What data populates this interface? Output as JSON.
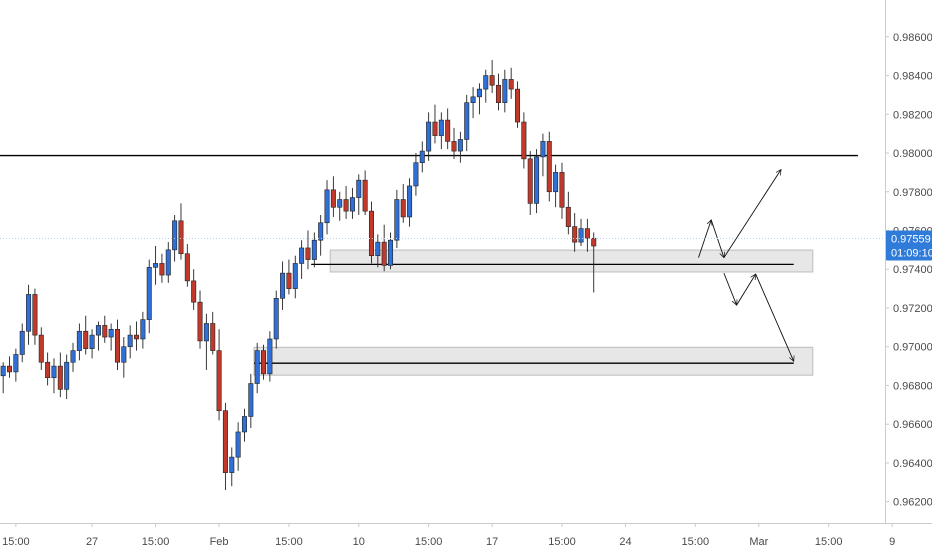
{
  "chart_data": {
    "type": "candlestick",
    "y_axis": {
      "position": "right",
      "ylim": [
        0.9609,
        0.9879
      ],
      "ticks": [
        "0.98600",
        "0.98400",
        "0.98200",
        "0.98000",
        "0.97800",
        "0.97600",
        "0.97400",
        "0.97200",
        "0.97000",
        "0.96800",
        "0.96600",
        "0.96400",
        "0.96200"
      ],
      "tick_values": [
        0.986,
        0.984,
        0.982,
        0.98,
        0.978,
        0.976,
        0.974,
        0.972,
        0.97,
        0.968,
        0.966,
        0.964,
        0.962
      ]
    },
    "x_axis": {
      "ticks": [
        "15:00",
        "27",
        "15:00",
        "Feb",
        "15:00",
        "10",
        "15:00",
        "17",
        "15:00",
        "24",
        "15:00",
        "Mar",
        "15:00",
        "9"
      ],
      "tick_index": [
        2,
        14,
        24,
        34,
        45,
        56,
        67,
        77,
        88,
        98,
        109,
        119,
        130,
        140
      ]
    },
    "colors": {
      "up": "#2f6fd6",
      "down": "#c0392b",
      "level_line": "#000000",
      "zone_fill": "#e3e3e3",
      "zone_border": "#bdbdbd",
      "price_line": "#b3d4f0",
      "price_badge": "#2f7bd9",
      "arrow": "#111111"
    },
    "current_price": {
      "value": 0.97559,
      "label": "0.97559",
      "countdown": "01:09:10"
    },
    "levels": [
      0.97987,
      0.97425,
      0.96915
    ],
    "zones": [
      {
        "from": 0.97386,
        "to": 0.97499,
        "start_index": 52,
        "end_index": 128
      },
      {
        "from": 0.96853,
        "to": 0.96997,
        "start_index": 40,
        "end_index": 128
      }
    ],
    "projection_path": [
      {
        "index": 110,
        "value": 0.9746
      },
      {
        "index": 112,
        "value": 0.97655
      },
      {
        "index": 114,
        "value": 0.9746
      },
      {
        "index": 123,
        "value": 0.97915
      }
    ],
    "projection_path_2": [
      {
        "index": 114,
        "value": 0.9738
      },
      {
        "index": 116,
        "value": 0.97215
      },
      {
        "index": 119,
        "value": 0.97375
      },
      {
        "index": 125,
        "value": 0.96925
      }
    ],
    "candles_ohlc": [
      [
        0.9685,
        0.9692,
        0.9676,
        0.969
      ],
      [
        0.969,
        0.9695,
        0.9684,
        0.9687
      ],
      [
        0.9687,
        0.9699,
        0.9682,
        0.9696
      ],
      [
        0.9696,
        0.9712,
        0.9692,
        0.9708
      ],
      [
        0.9708,
        0.9732,
        0.9701,
        0.9727
      ],
      [
        0.9727,
        0.973,
        0.9701,
        0.9706
      ],
      [
        0.9706,
        0.971,
        0.9688,
        0.9692
      ],
      [
        0.9692,
        0.9697,
        0.968,
        0.9684
      ],
      [
        0.9684,
        0.9694,
        0.9676,
        0.969
      ],
      [
        0.969,
        0.9697,
        0.9674,
        0.9678
      ],
      [
        0.9678,
        0.9696,
        0.9673,
        0.9692
      ],
      [
        0.9692,
        0.9702,
        0.9687,
        0.9698
      ],
      [
        0.9698,
        0.9712,
        0.9693,
        0.9708
      ],
      [
        0.9708,
        0.9716,
        0.9696,
        0.9699
      ],
      [
        0.9699,
        0.9709,
        0.9694,
        0.9706
      ],
      [
        0.9706,
        0.9713,
        0.9698,
        0.9711
      ],
      [
        0.9711,
        0.9716,
        0.9702,
        0.9705
      ],
      [
        0.9705,
        0.9712,
        0.9698,
        0.9709
      ],
      [
        0.9709,
        0.9714,
        0.9688,
        0.9692
      ],
      [
        0.9692,
        0.9705,
        0.9684,
        0.97
      ],
      [
        0.97,
        0.9711,
        0.9694,
        0.9706
      ],
      [
        0.9706,
        0.9713,
        0.9698,
        0.9704
      ],
      [
        0.9704,
        0.9718,
        0.9699,
        0.9714
      ],
      [
        0.9714,
        0.9745,
        0.9707,
        0.9741
      ],
      [
        0.9741,
        0.9752,
        0.9732,
        0.9743
      ],
      [
        0.9743,
        0.9748,
        0.9733,
        0.9737
      ],
      [
        0.9737,
        0.9754,
        0.9733,
        0.975
      ],
      [
        0.975,
        0.9768,
        0.9744,
        0.9765
      ],
      [
        0.9765,
        0.9774,
        0.9745,
        0.9748
      ],
      [
        0.9748,
        0.9753,
        0.9731,
        0.9734
      ],
      [
        0.9734,
        0.974,
        0.9719,
        0.9723
      ],
      [
        0.9723,
        0.9729,
        0.9699,
        0.9703
      ],
      [
        0.9703,
        0.9717,
        0.9688,
        0.9712
      ],
      [
        0.9712,
        0.9718,
        0.9696,
        0.9698
      ],
      [
        0.9698,
        0.9709,
        0.9662,
        0.9667
      ],
      [
        0.9667,
        0.9671,
        0.9626,
        0.9635
      ],
      [
        0.9635,
        0.9648,
        0.9628,
        0.9643
      ],
      [
        0.9643,
        0.9661,
        0.9636,
        0.9656
      ],
      [
        0.9656,
        0.9668,
        0.9651,
        0.9664
      ],
      [
        0.9664,
        0.9686,
        0.9658,
        0.9681
      ],
      [
        0.9681,
        0.9702,
        0.9676,
        0.9698
      ],
      [
        0.9698,
        0.9701,
        0.9683,
        0.9686
      ],
      [
        0.9686,
        0.9708,
        0.9682,
        0.9704
      ],
      [
        0.9704,
        0.9729,
        0.9699,
        0.9725
      ],
      [
        0.9725,
        0.9744,
        0.9719,
        0.9738
      ],
      [
        0.9738,
        0.9745,
        0.9727,
        0.973
      ],
      [
        0.973,
        0.9747,
        0.9725,
        0.9743
      ],
      [
        0.9743,
        0.9755,
        0.9735,
        0.9751
      ],
      [
        0.9751,
        0.976,
        0.974,
        0.9745
      ],
      [
        0.9745,
        0.9759,
        0.9741,
        0.9755
      ],
      [
        0.9755,
        0.9768,
        0.9747,
        0.9764
      ],
      [
        0.9764,
        0.9786,
        0.9758,
        0.9781
      ],
      [
        0.9781,
        0.9788,
        0.9767,
        0.9772
      ],
      [
        0.9772,
        0.978,
        0.9765,
        0.9776
      ],
      [
        0.9776,
        0.9783,
        0.9766,
        0.977
      ],
      [
        0.977,
        0.9782,
        0.9766,
        0.9777
      ],
      [
        0.9777,
        0.9789,
        0.9768,
        0.9786
      ],
      [
        0.9786,
        0.9791,
        0.9768,
        0.977
      ],
      [
        0.977,
        0.9775,
        0.9743,
        0.9747
      ],
      [
        0.9747,
        0.9758,
        0.9741,
        0.9754
      ],
      [
        0.9754,
        0.9763,
        0.9739,
        0.9742
      ],
      [
        0.9742,
        0.9759,
        0.974,
        0.9755
      ],
      [
        0.9755,
        0.9781,
        0.9751,
        0.9776
      ],
      [
        0.9776,
        0.9784,
        0.9764,
        0.9767
      ],
      [
        0.9767,
        0.9787,
        0.9762,
        0.9783
      ],
      [
        0.9783,
        0.98,
        0.9778,
        0.9795
      ],
      [
        0.9795,
        0.9806,
        0.979,
        0.9801
      ],
      [
        0.9801,
        0.9821,
        0.9796,
        0.9816
      ],
      [
        0.9816,
        0.9825,
        0.9805,
        0.9809
      ],
      [
        0.9809,
        0.9821,
        0.9802,
        0.9817
      ],
      [
        0.9817,
        0.9823,
        0.9802,
        0.9806
      ],
      [
        0.9806,
        0.9813,
        0.9797,
        0.9801
      ],
      [
        0.9801,
        0.9811,
        0.9795,
        0.9807
      ],
      [
        0.9807,
        0.983,
        0.9801,
        0.9826
      ],
      [
        0.9826,
        0.9834,
        0.9818,
        0.9829
      ],
      [
        0.9829,
        0.9836,
        0.982,
        0.9833
      ],
      [
        0.9833,
        0.9843,
        0.9826,
        0.984
      ],
      [
        0.984,
        0.9848,
        0.9831,
        0.9835
      ],
      [
        0.9835,
        0.9841,
        0.9822,
        0.9826
      ],
      [
        0.9826,
        0.9843,
        0.9821,
        0.9838
      ],
      [
        0.9838,
        0.9844,
        0.9828,
        0.9833
      ],
      [
        0.9833,
        0.9837,
        0.9813,
        0.9816
      ],
      [
        0.9816,
        0.9821,
        0.9792,
        0.9797
      ],
      [
        0.9797,
        0.9801,
        0.9768,
        0.9774
      ],
      [
        0.9774,
        0.9802,
        0.9769,
        0.9798
      ],
      [
        0.9798,
        0.981,
        0.9788,
        0.9806
      ],
      [
        0.9806,
        0.9811,
        0.9775,
        0.978
      ],
      [
        0.978,
        0.9794,
        0.9772,
        0.979
      ],
      [
        0.979,
        0.9795,
        0.9766,
        0.9772
      ],
      [
        0.9772,
        0.978,
        0.9758,
        0.9762
      ],
      [
        0.9762,
        0.9769,
        0.9749,
        0.9754
      ],
      [
        0.9754,
        0.9766,
        0.9752,
        0.9761
      ],
      [
        0.9761,
        0.9766,
        0.9749,
        0.9756
      ],
      [
        0.9756,
        0.9759,
        0.9728,
        0.9752
      ]
    ]
  }
}
